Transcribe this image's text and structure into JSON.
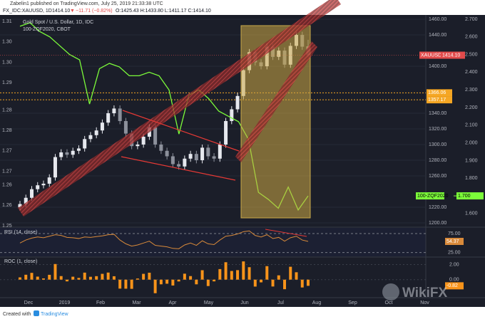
{
  "header": {
    "author_line": "Zabelin1 published on TradingView.com, July 25, 2019 21:33:38 UTC",
    "symbol": "FX_IDC:XAUUSD, 1D",
    "last": "1414.10",
    "arrow": "▼",
    "change": "−11.71 (−0.82%)",
    "ohlc": "O:1425.43 H:1433.80 L:1411.17 C:1414.10"
  },
  "footer": {
    "created": "Created with",
    "brand": "TradingView"
  },
  "watermark": "WikiFX",
  "time_labels": [
    "Dec",
    "2019",
    "Feb",
    "Mar",
    "Apr",
    "May",
    "Jun",
    "Jul",
    "Aug",
    "Sep",
    "Oct",
    "Nov"
  ],
  "chart_data": [
    {
      "type": "candlestick",
      "title": "Gold Spot / U.S. Dollar, 1D, IDC",
      "open": [
        1220,
        1224,
        1232,
        1243,
        1248,
        1250,
        1258,
        1284,
        1290,
        1287,
        1292,
        1295,
        1307,
        1312,
        1318,
        1328,
        1340,
        1346,
        1330,
        1314,
        1298,
        1300,
        1310,
        1322,
        1300,
        1292,
        1285,
        1275,
        1272,
        1282,
        1288,
        1280,
        1296,
        1285,
        1282,
        1300,
        1330,
        1345,
        1362,
        1395,
        1418,
        1405,
        1400,
        1425,
        1412,
        1420,
        1402,
        1426,
        1440,
        1425.43
      ],
      "high": [
        1228,
        1236,
        1247,
        1252,
        1254,
        1262,
        1288,
        1294,
        1294,
        1296,
        1299,
        1311,
        1316,
        1322,
        1332,
        1344,
        1350,
        1350,
        1334,
        1318,
        1304,
        1314,
        1326,
        1326,
        1304,
        1296,
        1289,
        1279,
        1286,
        1292,
        1292,
        1300,
        1300,
        1289,
        1304,
        1334,
        1349,
        1366,
        1399,
        1422,
        1422,
        1409,
        1429,
        1429,
        1424,
        1424,
        1430,
        1444,
        1444,
        1433.8
      ],
      "low": [
        1216,
        1220,
        1228,
        1239,
        1244,
        1246,
        1254,
        1280,
        1283,
        1283,
        1288,
        1291,
        1303,
        1308,
        1314,
        1324,
        1336,
        1326,
        1310,
        1294,
        1294,
        1296,
        1306,
        1296,
        1288,
        1281,
        1271,
        1268,
        1268,
        1278,
        1276,
        1276,
        1281,
        1278,
        1278,
        1296,
        1326,
        1341,
        1358,
        1391,
        1401,
        1396,
        1396,
        1408,
        1408,
        1398,
        1398,
        1422,
        1421,
        1411.17
      ],
      "close": [
        1224,
        1232,
        1243,
        1248,
        1250,
        1258,
        1284,
        1290,
        1287,
        1292,
        1295,
        1307,
        1312,
        1318,
        1328,
        1340,
        1346,
        1330,
        1314,
        1298,
        1300,
        1310,
        1322,
        1300,
        1292,
        1285,
        1275,
        1272,
        1282,
        1288,
        1280,
        1296,
        1285,
        1282,
        1300,
        1330,
        1345,
        1362,
        1395,
        1418,
        1405,
        1400,
        1425,
        1412,
        1420,
        1402,
        1426,
        1440,
        1425,
        1414.1
      ],
      "up_color": "#e6e8ee",
      "down_color": "#8c909b",
      "ylim": [
        1194.5,
        1465.5
      ],
      "yticks": [
        {
          "value": 1460,
          "label": "1460.00"
        },
        {
          "value": 1440,
          "label": "1440.00"
        },
        {
          "value": 1400,
          "label": "1400.00"
        },
        {
          "value": 1340,
          "label": "1340.00"
        },
        {
          "value": 1320,
          "label": "1320.00"
        },
        {
          "value": 1300,
          "label": "1300.00"
        },
        {
          "value": 1280,
          "label": "1280.00"
        },
        {
          "value": 1260,
          "label": "1260.00"
        },
        {
          "value": 1220,
          "label": "1220.00"
        },
        {
          "value": 1200,
          "label": "1200.00"
        }
      ],
      "y2lim": [
        1.523,
        2.724
      ],
      "y2ticks": [
        {
          "value": 2.7,
          "label": "2.700"
        },
        {
          "value": 2.6,
          "label": "2.600"
        },
        {
          "value": 2.5,
          "label": "2.500"
        },
        {
          "value": 2.4,
          "label": "2.400"
        },
        {
          "value": 2.3,
          "label": "2.300"
        },
        {
          "value": 2.2,
          "label": "2.200"
        },
        {
          "value": 2.1,
          "label": "2.100"
        },
        {
          "value": 2,
          "label": "2.000"
        },
        {
          "value": 1.9,
          "label": "1.900"
        },
        {
          "value": 1.8,
          "label": "1.800"
        },
        {
          "value": 1.6,
          "label": "1.600"
        }
      ],
      "left_ylim": [
        1.2496,
        1.3119
      ],
      "left_yticks": [
        {
          "value": 1.31,
          "label": "1.31"
        },
        {
          "value": 1.304,
          "label": "1.30"
        },
        {
          "value": 1.298,
          "label": "1.30"
        },
        {
          "value": 1.292,
          "label": "1.29"
        },
        {
          "value": 1.284,
          "label": "1.28"
        },
        {
          "value": 1.278,
          "label": "1.28"
        },
        {
          "value": 1.272,
          "label": "1.27"
        },
        {
          "value": 1.266,
          "label": "1.27"
        },
        {
          "value": 1.262,
          "label": "1.26"
        },
        {
          "value": 1.256,
          "label": "1.26"
        },
        {
          "value": 1.25,
          "label": "1.25"
        }
      ],
      "series": [
        {
          "name": "100-ZQF2020",
          "subtitle": "100-ZQF2020, CBOT",
          "color": "#7cfc3a",
          "axis": "y2",
          "values": [
            2.66,
            2.68,
            2.63,
            2.6,
            2.55,
            2.5,
            2.47,
            2.22,
            2.42,
            2.45,
            2.43,
            2.38,
            2.38,
            2.4,
            2.38,
            2.3,
            2.05,
            2.27,
            2.3,
            2.25,
            2.18,
            2.15,
            2.12,
            2.02,
            1.72,
            1.68,
            1.63,
            1.75,
            1.62,
            1.7
          ],
          "last_label": {
            "value": 1.7,
            "label": "1.700"
          }
        }
      ],
      "hlines": [
        1366.06,
        1357.17
      ],
      "hline_color": "#f5a623",
      "last_price": {
        "name": "XAUUSD",
        "value": 1414.1,
        "label": "1414.10",
        "color": "#e24b4b"
      },
      "grid": true
    },
    {
      "type": "line",
      "title": "RSI (14, close)",
      "color": "#d98a3a",
      "values": [
        50,
        58,
        63,
        66,
        64,
        68,
        72,
        70,
        65,
        64,
        62,
        66,
        65,
        67,
        69,
        72,
        73,
        58,
        48,
        42,
        45,
        50,
        55,
        44,
        42,
        40,
        36,
        35,
        45,
        50,
        44,
        56,
        48,
        46,
        58,
        68,
        70,
        74,
        80,
        82,
        70,
        66,
        72,
        62,
        65,
        55,
        64,
        68,
        58,
        54.37
      ],
      "ylim": [
        15,
        90
      ],
      "yticks": [
        {
          "value": 75,
          "label": "75.00"
        },
        {
          "value": 25,
          "label": "25.00"
        }
      ]
    },
    {
      "type": "bar",
      "title": "ROC (1, close)",
      "color": "#f7931a",
      "values": [
        0.3,
        0.65,
        0.9,
        0.4,
        0.16,
        0.64,
        2.07,
        0.47,
        -0.23,
        0.39,
        0.23,
        0.93,
        0.38,
        0.46,
        0.77,
        0.94,
        0.45,
        -1.19,
        -1.2,
        -1.22,
        0.15,
        0.77,
        0.92,
        -1.8,
        -0.62,
        -0.54,
        -0.78,
        -0.24,
        0.79,
        0.47,
        -0.62,
        1.25,
        -0.85,
        -0.23,
        1.4,
        2.31,
        1.15,
        1.26,
        2.42,
        1.65,
        -0.92,
        -0.36,
        1.79,
        -0.91,
        0.57,
        -1.27,
        1.71,
        0.98,
        -1.04,
        -0.82
      ],
      "ylim": [
        -2.2,
        2.9
      ],
      "yticks": [
        {
          "value": 2,
          "label": "2.00"
        },
        {
          "value": 0,
          "label": "0.00"
        }
      ]
    }
  ]
}
